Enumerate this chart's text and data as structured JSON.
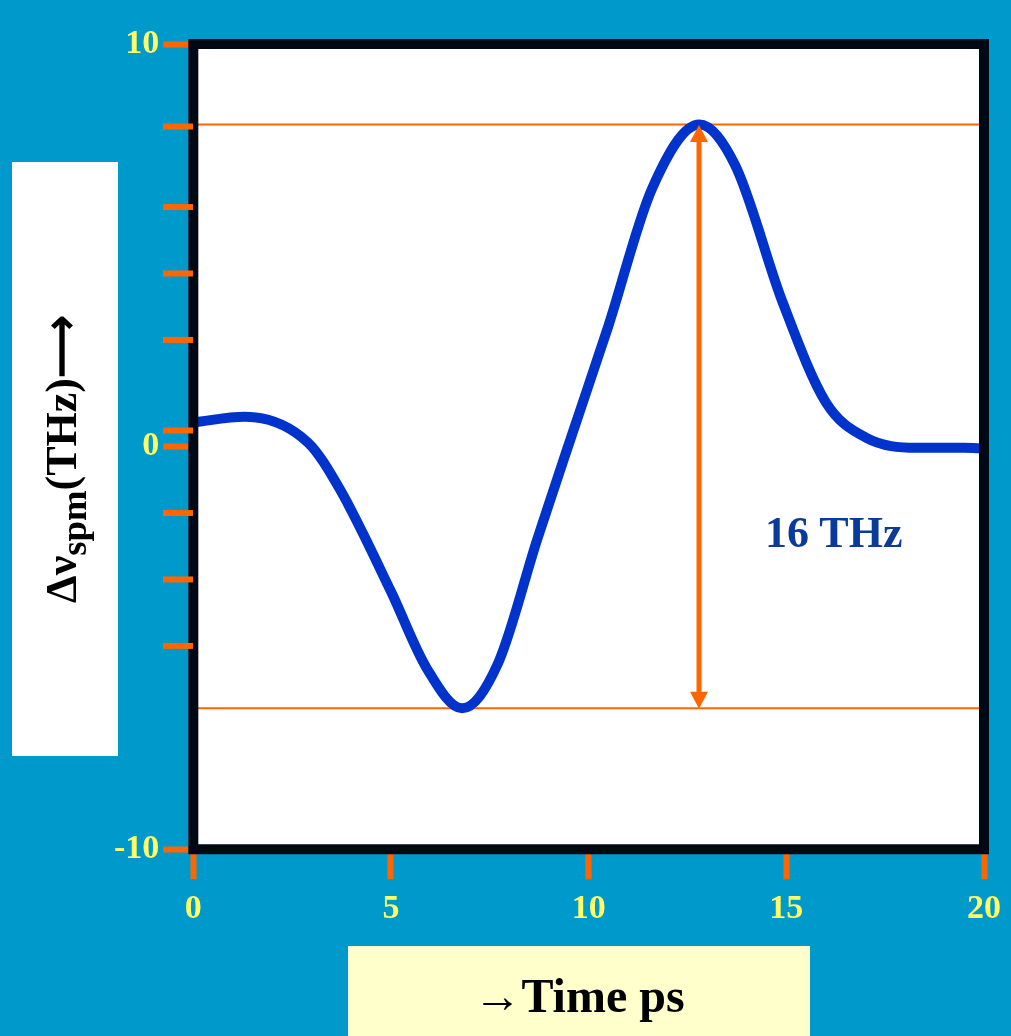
{
  "chart_data": {
    "type": "line",
    "xlabel": "→Time ps",
    "ylabel": "Δν$_{spm}$(THz)⟶",
    "x": [
      0,
      1.3,
      2.9,
      3.7,
      5.0,
      5.9,
      6.8,
      7.7,
      8.7,
      9.6,
      10.5,
      11.6,
      12.8,
      13.7,
      14.9,
      16.0,
      17.0,
      18.3,
      19.5,
      20
    ],
    "series": [
      {
        "color": "#0033cc",
        "values": [
          0.6,
          0.74,
          0.1,
          -1.05,
          -3.6,
          -5.5,
          -6.5,
          -5.4,
          -2.3,
          0.36,
          3.0,
          6.4,
          8.0,
          7.0,
          3.6,
          1.1,
          0.23,
          -0.03,
          -0.03,
          -0.05
        ]
      }
    ],
    "xlim": [
      0,
      20
    ],
    "xticks": [
      0,
      5,
      10,
      15,
      20
    ],
    "ylim": [
      -10,
      10
    ],
    "yticks": [
      10,
      0,
      -10
    ],
    "ref_lines": [
      {
        "axis": "y",
        "value": 8.0,
        "color": "#ff6600"
      },
      {
        "axis": "y",
        "value": -6.5,
        "color": "#ff6600"
      }
    ],
    "annotations": [
      "16 THz"
    ],
    "marker": "none"
  }
}
